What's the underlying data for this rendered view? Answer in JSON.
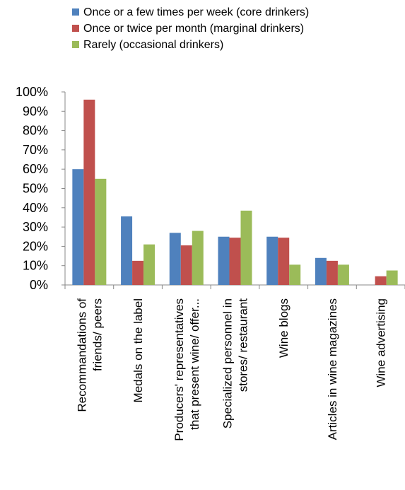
{
  "chart_data": {
    "type": "bar",
    "title": "",
    "xlabel": "",
    "ylabel": "",
    "ylim": [
      0,
      100
    ],
    "y_tick_step": 10,
    "y_format": "percent",
    "grid": false,
    "legend_position": "top-center",
    "categories": [
      [
        "Recommandations of",
        "friends/ peers"
      ],
      [
        "Medals on the label"
      ],
      [
        "Producers' representatives",
        "that present wine/ offer..."
      ],
      [
        "Specialized personnel in",
        "stores/ restaurant"
      ],
      [
        "Wine blogs"
      ],
      [
        "Articles in wine magazines"
      ],
      [
        "Wine advertising"
      ]
    ],
    "series": [
      {
        "name": "Once or a few times per week (core drinkers)",
        "color": "#4F81BD",
        "values": [
          60,
          35.5,
          27,
          25,
          25,
          14,
          0
        ]
      },
      {
        "name": "Once or twice per month (marginal drinkers)",
        "color": "#C0504D",
        "values": [
          96,
          12.5,
          20.5,
          24.5,
          24.5,
          12.5,
          4.5
        ]
      },
      {
        "name": "Rarely (occasional drinkers)",
        "color": "#9BBB59",
        "values": [
          55,
          21,
          28,
          38.5,
          10.5,
          10.5,
          7.5
        ]
      }
    ]
  }
}
